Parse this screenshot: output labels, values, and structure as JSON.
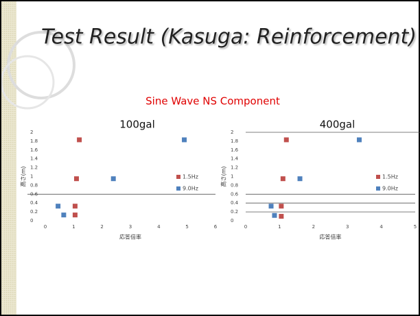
{
  "title": "Test Result (Kasuga: Reinforcement)",
  "subtitle": "Sine Wave NS Component",
  "chart_data": [
    {
      "type": "scatter",
      "title": "100gal",
      "xlabel": "応答倍率",
      "ylabel": "高さ(m)",
      "xlim": [
        0,
        6
      ],
      "xticks": [
        0,
        1,
        2,
        3,
        4,
        5,
        6
      ],
      "ylim": [
        0,
        2
      ],
      "yticks": [
        0,
        0.2,
        0.4,
        0.6,
        0.8,
        1,
        1.2,
        1.4,
        1.6,
        1.8,
        2
      ],
      "hlines": [
        0.6
      ],
      "series": [
        {
          "name": "1.5Hz",
          "color": "#c0504d",
          "x": [
            1.2,
            1.1,
            1.05,
            1.05
          ],
          "values": [
            1.83,
            0.95,
            0.33,
            0.13
          ]
        },
        {
          "name": "9.0Hz",
          "color": "#4f81bd",
          "x": [
            4.9,
            2.4,
            0.45,
            0.65
          ],
          "values": [
            1.83,
            0.95,
            0.33,
            0.13
          ]
        }
      ]
    },
    {
      "type": "scatter",
      "title": "400gal",
      "xlabel": "応答倍率",
      "ylabel": "高さ(m)",
      "xlim": [
        0,
        5
      ],
      "xticks": [
        0,
        1,
        2,
        3,
        4,
        5
      ],
      "ylim": [
        0,
        2
      ],
      "yticks": [
        0,
        0.2,
        0.4,
        0.6,
        0.8,
        1,
        1.2,
        1.4,
        1.6,
        1.8,
        2
      ],
      "hlines": [
        2,
        0.6,
        0.4,
        0.2
      ],
      "series": [
        {
          "name": "1.5Hz",
          "color": "#c0504d",
          "x": [
            1.2,
            1.1,
            1.05,
            1.05
          ],
          "values": [
            1.83,
            0.95,
            0.33,
            0.1
          ]
        },
        {
          "name": "9.0Hz",
          "color": "#4f81bd",
          "x": [
            3.35,
            1.6,
            0.75,
            0.85
          ],
          "values": [
            1.83,
            0.95,
            0.33,
            0.12
          ]
        }
      ]
    }
  ]
}
